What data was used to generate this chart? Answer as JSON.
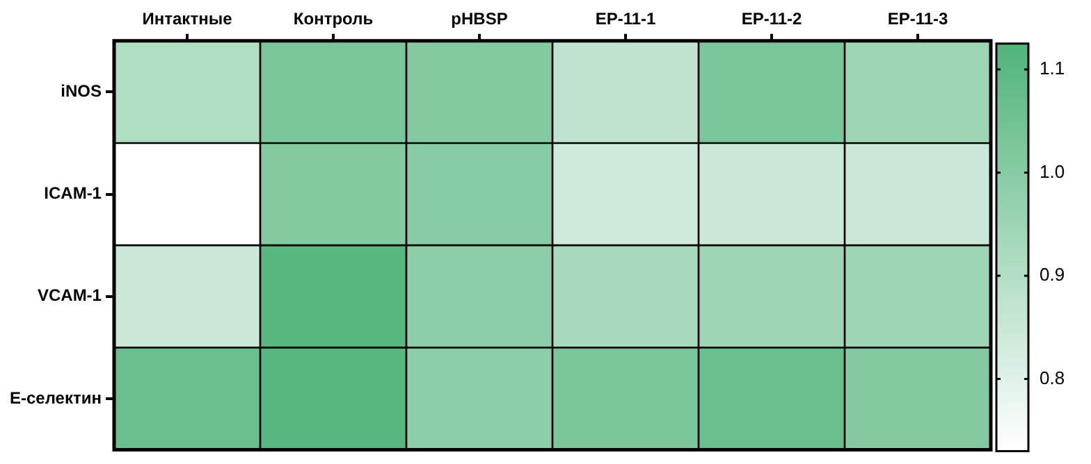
{
  "chart_data": {
    "type": "heatmap",
    "categories": [
      "Интактные",
      "Контроль",
      "pHBSP",
      "EP-11-1",
      "EP-11-2",
      "EP-11-3"
    ],
    "y_categories": [
      "iNOS",
      "ICAM-1",
      "VCAM-1",
      "E-селектин"
    ],
    "cells": [
      [
        0.91,
        1.03,
        1.01,
        0.875,
        1.03,
        0.95
      ],
      [
        0.73,
        1.01,
        1.0,
        0.84,
        0.85,
        0.85
      ],
      [
        0.85,
        1.11,
        0.99,
        0.93,
        0.95,
        0.95
      ],
      [
        1.07,
        1.11,
        0.99,
        1.03,
        1.07,
        1.01
      ]
    ],
    "clim": [
      0.73,
      1.125
    ],
    "cticks": [
      0.8,
      0.9,
      {
        "value": 1,
        "label": "1.0"
      },
      1.1
    ]
  }
}
